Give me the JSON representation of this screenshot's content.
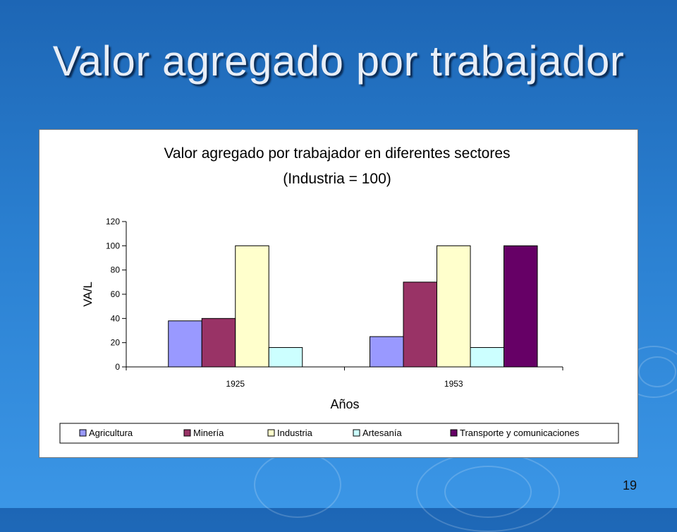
{
  "slide": {
    "title": "Valor agregado por trabajador",
    "page_number": "19"
  },
  "chart_data": {
    "type": "bar",
    "title": "Valor agregado por trabajador en diferentes sectores",
    "subtitle": "(Industria = 100)",
    "xlabel": "Años",
    "ylabel": "VA/L",
    "categories": [
      "1925",
      "1953"
    ],
    "ylim": [
      0,
      120
    ],
    "yticks": [
      0,
      20,
      40,
      60,
      80,
      100,
      120
    ],
    "grid": false,
    "legend_position": "bottom",
    "series": [
      {
        "name": "Agricultura",
        "values": [
          38,
          25
        ],
        "color": "#9999ff"
      },
      {
        "name": "Minería",
        "values": [
          40,
          70
        ],
        "color": "#993366"
      },
      {
        "name": "Industria",
        "values": [
          100,
          100
        ],
        "color": "#ffffcc"
      },
      {
        "name": "Artesanía",
        "values": [
          16,
          16
        ],
        "color": "#ccffff"
      },
      {
        "name": "Transporte y comunicaciones",
        "values": [
          null,
          100
        ],
        "color": "#660066"
      }
    ]
  }
}
